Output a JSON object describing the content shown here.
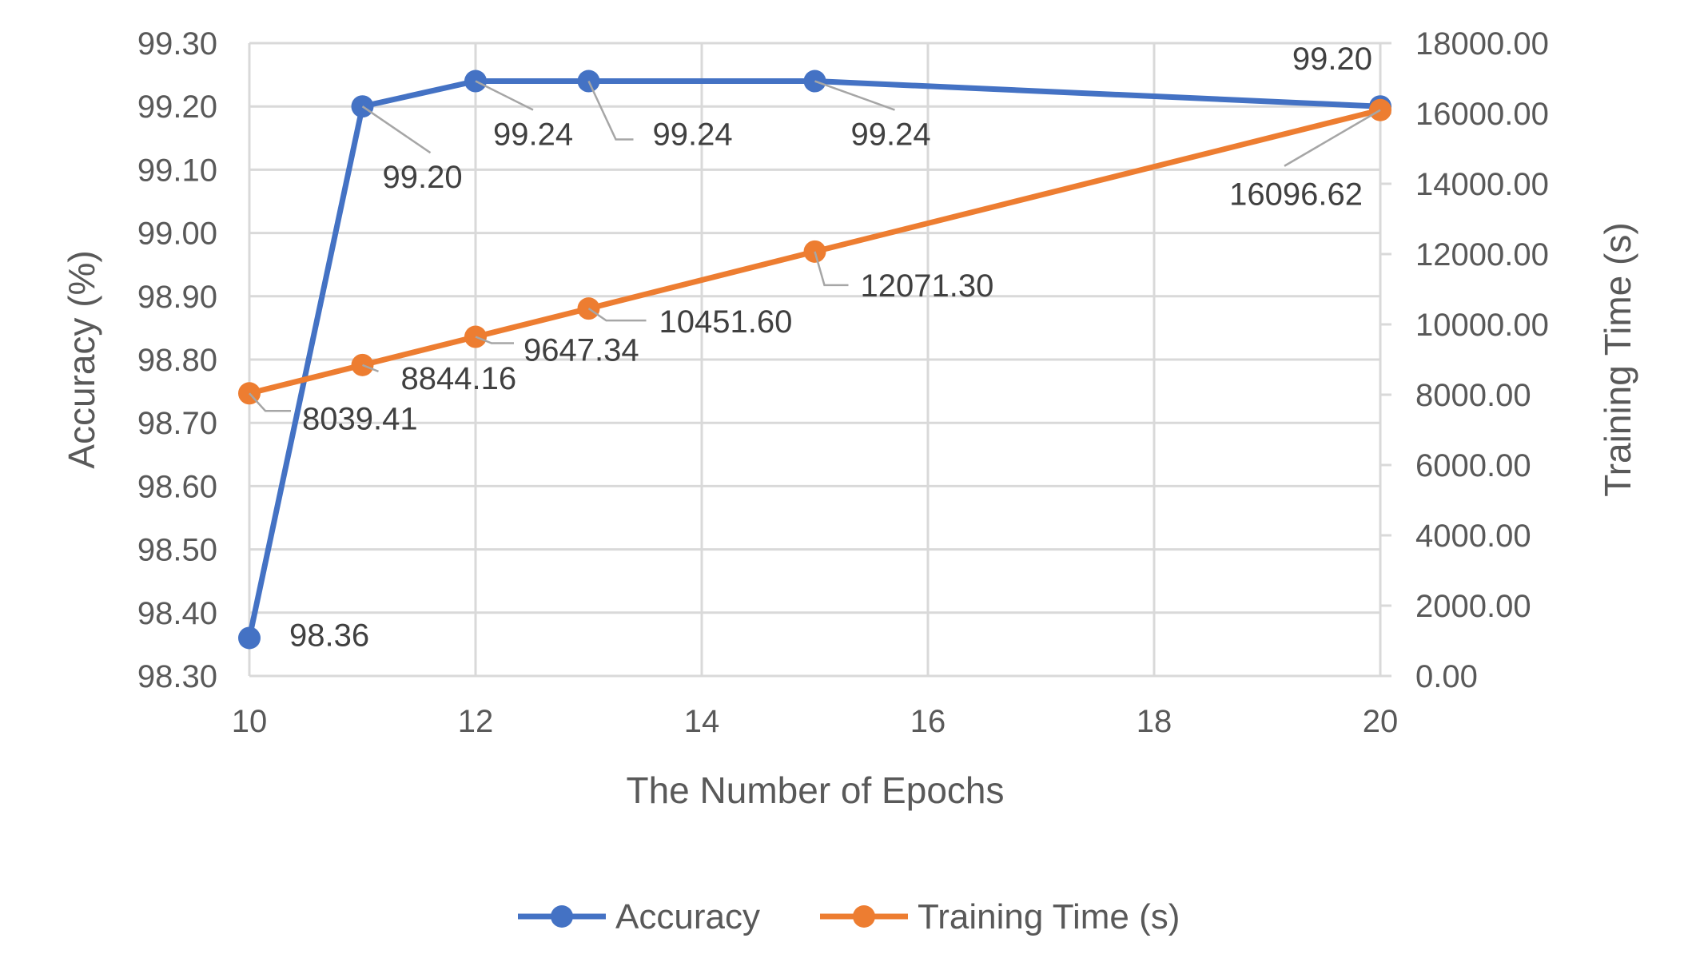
{
  "chart_data": {
    "type": "line",
    "xlabel": "The Number of Epochs",
    "ylabel": "Accuracy (%)",
    "y2label": "Training Time (s)",
    "xlim": [
      10,
      20
    ],
    "ylim": [
      98.3,
      99.3
    ],
    "y2lim": [
      0,
      18000
    ],
    "x_ticks": [
      "10",
      "12",
      "14",
      "16",
      "18",
      "20"
    ],
    "y_ticks": [
      "98.30",
      "98.40",
      "98.50",
      "98.60",
      "98.70",
      "98.80",
      "98.90",
      "99.00",
      "99.10",
      "99.20",
      "99.30"
    ],
    "y2_ticks": [
      "0.00",
      "2000.00",
      "4000.00",
      "6000.00",
      "8000.00",
      "10000.00",
      "12000.00",
      "14000.00",
      "16000.00",
      "18000.00"
    ],
    "grid": true,
    "legend_position": "bottom",
    "series": [
      {
        "name": "Accuracy",
        "axis": "left",
        "color": "#4472c4",
        "x": [
          10,
          11,
          12,
          13,
          15,
          20
        ],
        "values": [
          98.36,
          99.2,
          99.24,
          99.24,
          99.24,
          99.2
        ],
        "labels": [
          "98.36",
          "99.20",
          "99.24",
          "99.24",
          "99.24",
          "99.20"
        ]
      },
      {
        "name": "Training Time (s)",
        "axis": "right",
        "color": "#ed7d31",
        "x": [
          10,
          11,
          12,
          13,
          15,
          20
        ],
        "values": [
          8039.41,
          8844.16,
          9647.34,
          10451.6,
          12071.3,
          16096.62
        ],
        "labels": [
          "8039.41",
          "8844.16",
          "9647.34",
          "10451.60",
          "12071.30",
          "16096.62"
        ]
      }
    ]
  }
}
